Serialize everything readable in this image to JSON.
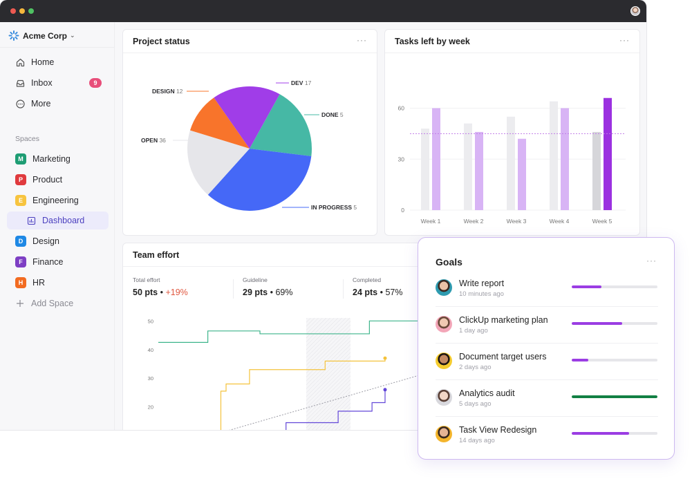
{
  "workspace": {
    "name": "Acme Corp"
  },
  "nav": [
    {
      "label": "Home",
      "icon": "home-icon"
    },
    {
      "label": "Inbox",
      "icon": "inbox-icon",
      "badge": "9"
    },
    {
      "label": "More",
      "icon": "more-icon"
    }
  ],
  "spaces": {
    "label": "Spaces",
    "items": [
      {
        "initial": "M",
        "label": "Marketing",
        "color": "#1e9d74"
      },
      {
        "initial": "P",
        "label": "Product",
        "color": "#e03a3e"
      },
      {
        "initial": "E",
        "label": "Engineering",
        "color": "#f7c43f"
      },
      {
        "initial": "D",
        "label": "Design",
        "color": "#1e88e5"
      },
      {
        "initial": "F",
        "label": "Finance",
        "color": "#7e3fc4"
      },
      {
        "initial": "H",
        "label": "HR",
        "color": "#f26b21"
      }
    ],
    "active_sub": "Dashboard",
    "add_label": "Add Space"
  },
  "project_status": {
    "title": "Project status",
    "more": "···",
    "chart_data": {
      "type": "pie",
      "slices": [
        {
          "label": "DESIGN",
          "value": 12,
          "color": "#f8742b"
        },
        {
          "label": "DEV",
          "value": 17,
          "color": "#a03de8"
        },
        {
          "label": "DONE",
          "value": 5,
          "color": "#46b8a5"
        },
        {
          "label": "IN PROGRESS",
          "value": 5,
          "color": "#4568f7"
        },
        {
          "label": "OPEN",
          "value": 36,
          "color": "#e6e6ea"
        }
      ]
    }
  },
  "tasks_left": {
    "title": "Tasks left by week",
    "more": "···",
    "chart_data": {
      "type": "bar",
      "categories": [
        "Week 1",
        "Week 2",
        "Week 3",
        "Week 4",
        "Week 5"
      ],
      "series": [
        {
          "values": [
            48,
            51,
            55,
            64,
            46
          ]
        },
        {
          "values": [
            60,
            46,
            42,
            60,
            66
          ]
        }
      ],
      "guideline": 45,
      "yticks": [
        0,
        30,
        60
      ],
      "ylim": [
        0,
        72
      ]
    }
  },
  "team_effort": {
    "title": "Team effort",
    "stats": [
      {
        "label": "Total effort",
        "value": "50 pts",
        "extra": "+19%"
      },
      {
        "label": "Guideline",
        "value": "29 pts",
        "extra": "69%"
      },
      {
        "label": "Completed",
        "value": "24 pts",
        "extra": "57%"
      }
    ],
    "chart_data": {
      "type": "line",
      "yticks": [
        20,
        30,
        40,
        50
      ],
      "ylim": [
        11,
        52
      ],
      "xlim": [
        0,
        100
      ],
      "series": [
        {
          "color": "#3cb48a",
          "points": [
            [
              0,
              42.5
            ],
            [
              19,
              42.5
            ],
            [
              19,
              46.5
            ],
            [
              39,
              46.5
            ],
            [
              39,
              45.5
            ],
            [
              81,
              45.5
            ],
            [
              81,
              50
            ],
            [
              100,
              50
            ]
          ]
        },
        {
          "color": "#f4c23b",
          "points": [
            [
              15,
              11
            ],
            [
              24,
              11
            ],
            [
              24,
              25.5
            ],
            [
              26,
              25.5
            ],
            [
              26,
              28
            ],
            [
              35,
              28
            ],
            [
              35,
              33
            ],
            [
              64,
              33
            ],
            [
              64,
              36
            ],
            [
              87,
              36
            ],
            [
              87,
              37
            ]
          ]
        },
        {
          "color": "#6246d8",
          "points": [
            [
              49,
              11
            ],
            [
              49,
              14.5
            ],
            [
              69,
              14.5
            ],
            [
              69,
              18.5
            ],
            [
              82,
              18.5
            ],
            [
              82,
              21.5
            ],
            [
              87,
              21.5
            ],
            [
              87,
              26
            ]
          ]
        },
        {
          "color": "#9a9aa3",
          "dashed": true,
          "points": [
            [
              24,
              11
            ],
            [
              100,
              31
            ]
          ]
        }
      ]
    }
  },
  "goals": {
    "title": "Goals",
    "more": "···",
    "items": [
      {
        "name": "Write report",
        "time": "10 minutes ago",
        "progress": 0.35,
        "color": "#9b3de3"
      },
      {
        "name": "ClickUp marketing plan",
        "time": "1 day ago",
        "progress": 0.59,
        "color": "#9b3de3"
      },
      {
        "name": "Document target users",
        "time": "2 days ago",
        "progress": 0.19,
        "color": "#9b3de3"
      },
      {
        "name": "Analytics audit",
        "time": "5 days ago",
        "progress": 1.0,
        "color": "#128043"
      },
      {
        "name": "Task View Redesign",
        "time": "14 days ago",
        "progress": 0.67,
        "color": "#9b3de3"
      }
    ]
  }
}
